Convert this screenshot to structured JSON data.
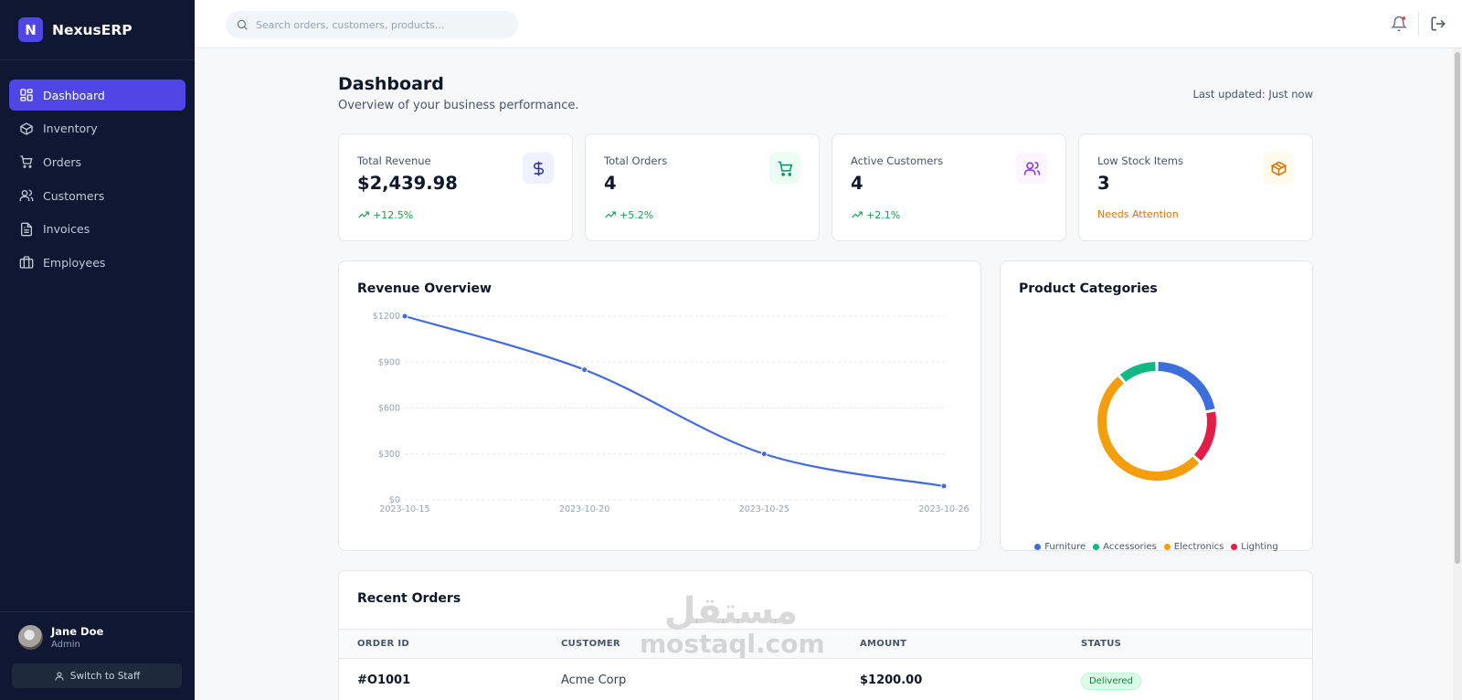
{
  "brand": {
    "logo_letter": "N",
    "name": "NexusERP"
  },
  "sidebar": {
    "items": [
      {
        "label": "Dashboard",
        "icon": "dashboard-icon",
        "active": true
      },
      {
        "label": "Inventory",
        "icon": "box-icon",
        "active": false
      },
      {
        "label": "Orders",
        "icon": "cart-icon",
        "active": false
      },
      {
        "label": "Customers",
        "icon": "users-icon",
        "active": false
      },
      {
        "label": "Invoices",
        "icon": "file-icon",
        "active": false
      },
      {
        "label": "Employees",
        "icon": "briefcase-icon",
        "active": false
      }
    ],
    "user": {
      "name": "Jane Doe",
      "role": "Admin"
    },
    "switch_label": "Switch to Staff"
  },
  "topbar": {
    "search_placeholder": "Search orders, customers, products...",
    "notification_icon": "bell-icon",
    "logout_icon": "logout-icon"
  },
  "page": {
    "title": "Dashboard",
    "subtitle": "Overview of your business performance.",
    "last_updated": "Last updated: Just now"
  },
  "stats": [
    {
      "label": "Total Revenue",
      "value": "$2,439.98",
      "trend": "+12.5%",
      "icon": "dollar-icon",
      "accent": "#3730a3",
      "icon_bg": "#eef2ff"
    },
    {
      "label": "Total Orders",
      "value": "4",
      "trend": "+5.2%",
      "icon": "cart-icon",
      "accent": "#059669",
      "icon_bg": "#ecfdf5"
    },
    {
      "label": "Active Customers",
      "value": "4",
      "trend": "+2.1%",
      "icon": "users-icon",
      "accent": "#9333ea",
      "icon_bg": "#faf5ff"
    },
    {
      "label": "Low Stock Items",
      "value": "3",
      "trend": "Needs Attention",
      "icon": "box-icon",
      "accent": "#d97706",
      "icon_bg": "#fffbeb"
    }
  ],
  "revenue_card": {
    "title": "Revenue Overview"
  },
  "categories_card": {
    "title": "Product Categories"
  },
  "chart_data": [
    {
      "type": "line",
      "title": "Revenue Overview",
      "x": [
        "2023-10-15",
        "2023-10-20",
        "2023-10-25",
        "2023-10-26"
      ],
      "values": [
        1200,
        850,
        300,
        90
      ],
      "y_ticks": [
        "$1200",
        "$900",
        "$600",
        "$300",
        "$0"
      ],
      "y_tick_values": [
        1200,
        900,
        600,
        300,
        0
      ],
      "ylim": [
        0,
        1200
      ],
      "grid": true,
      "color": "#4169e1"
    },
    {
      "type": "pie",
      "title": "Product Categories",
      "donut": true,
      "categories": [
        "Furniture",
        "Accessories",
        "Electronics",
        "Lighting"
      ],
      "values": [
        22,
        11,
        52,
        15
      ],
      "order_clockwise_from_top": [
        "Furniture",
        "Lighting",
        "Electronics",
        "Accessories"
      ],
      "colors": {
        "Furniture": "#3b6fdc",
        "Accessories": "#10b981",
        "Electronics": "#f59e0b",
        "Lighting": "#e11d48"
      },
      "legend": "bottom"
    }
  ],
  "orders_card": {
    "title": "Recent Orders",
    "columns": [
      "ORDER ID",
      "CUSTOMER",
      "AMOUNT",
      "STATUS"
    ],
    "rows": [
      {
        "id": "#O1001",
        "customer": "Acme Corp",
        "amount": "$1200.00",
        "status": "Delivered"
      }
    ]
  },
  "watermark": {
    "arabic": "مستقل",
    "latin": "mostaql.com"
  }
}
